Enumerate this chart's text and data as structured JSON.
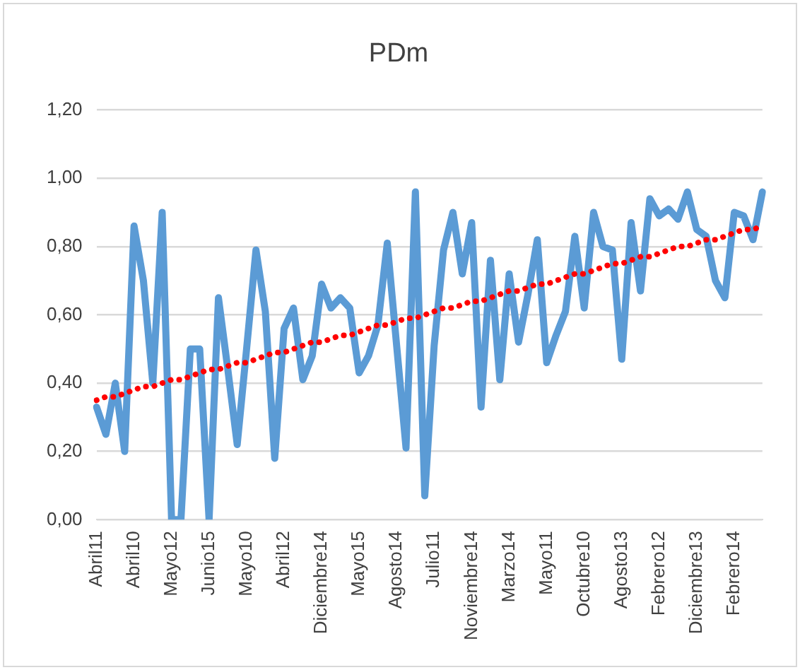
{
  "chart_data": {
    "type": "line",
    "title": "PDm",
    "categories": [
      "Abril11",
      null,
      null,
      null,
      "Abril10",
      null,
      null,
      null,
      "Mayo12",
      null,
      null,
      null,
      "Junio15",
      null,
      null,
      null,
      "Mayo10",
      null,
      null,
      null,
      "Abril12",
      null,
      null,
      null,
      "Diciembre14",
      null,
      null,
      null,
      "Mayo15",
      null,
      null,
      null,
      "Agosto14",
      null,
      null,
      null,
      "Julio11",
      null,
      null,
      null,
      "Noviembre14",
      null,
      null,
      null,
      "Marzo14",
      null,
      null,
      null,
      "Mayo11",
      null,
      null,
      null,
      "Octubre10",
      null,
      null,
      null,
      "Agosto13",
      null,
      null,
      null,
      "Febrero12",
      null,
      null,
      null,
      "Diciembre13",
      null,
      null,
      null,
      "Febrero14",
      null,
      null,
      null
    ],
    "series": [
      {
        "color": "#5b9bd5",
        "line_style": "solid",
        "values": [
          0.33,
          0.25,
          0.4,
          0.2,
          0.86,
          0.7,
          0.4,
          0.9,
          0.0,
          0.0,
          0.5,
          0.5,
          0.0,
          0.65,
          0.44,
          0.22,
          0.5,
          0.79,
          0.61,
          0.18,
          0.56,
          0.62,
          0.41,
          0.48,
          0.69,
          0.62,
          0.65,
          0.62,
          0.43,
          0.48,
          0.57,
          0.81,
          0.51,
          0.21,
          0.96,
          0.07,
          0.51,
          0.79,
          0.9,
          0.72,
          0.87,
          0.33,
          0.76,
          0.41,
          0.72,
          0.52,
          0.66,
          0.82,
          0.46,
          0.54,
          0.61,
          0.83,
          0.62,
          0.9,
          0.8,
          0.79,
          0.47,
          0.87,
          0.67,
          0.94,
          0.89,
          0.91,
          0.88,
          0.96,
          0.85,
          0.83,
          0.7,
          0.65,
          0.9,
          0.89,
          0.82,
          0.96
        ]
      },
      {
        "color": "#ff0000",
        "line_style": "dotted",
        "values": [
          0.35,
          0.36,
          0.36,
          0.37,
          0.38,
          0.39,
          0.39,
          0.4,
          0.41,
          0.41,
          0.42,
          0.43,
          0.44,
          0.44,
          0.45,
          0.46,
          0.46,
          0.47,
          0.48,
          0.49,
          0.49,
          0.5,
          0.51,
          0.52,
          0.52,
          0.53,
          0.54,
          0.54,
          0.55,
          0.56,
          0.57,
          0.57,
          0.58,
          0.59,
          0.59,
          0.6,
          0.61,
          0.62,
          0.62,
          0.63,
          0.64,
          0.64,
          0.65,
          0.66,
          0.67,
          0.67,
          0.68,
          0.69,
          0.69,
          0.7,
          0.71,
          0.72,
          0.72,
          0.73,
          0.74,
          0.75,
          0.75,
          0.76,
          0.77,
          0.77,
          0.78,
          0.79,
          0.8,
          0.8,
          0.81,
          0.82,
          0.82,
          0.83,
          0.84,
          0.85,
          0.85,
          0.86
        ]
      }
    ],
    "ylim": [
      0,
      1.2
    ],
    "yticks": [
      {
        "value": 0,
        "label": "0,00"
      },
      {
        "value": 0.2,
        "label": "0,20"
      },
      {
        "value": 0.4,
        "label": "0,40"
      },
      {
        "value": 0.6,
        "label": "0,60"
      },
      {
        "value": 0.8,
        "label": "0,80"
      },
      {
        "value": 1,
        "label": "1,00"
      },
      {
        "value": 1.2,
        "label": "1,20"
      }
    ],
    "grid": "y",
    "legend": false,
    "marker": "none"
  }
}
